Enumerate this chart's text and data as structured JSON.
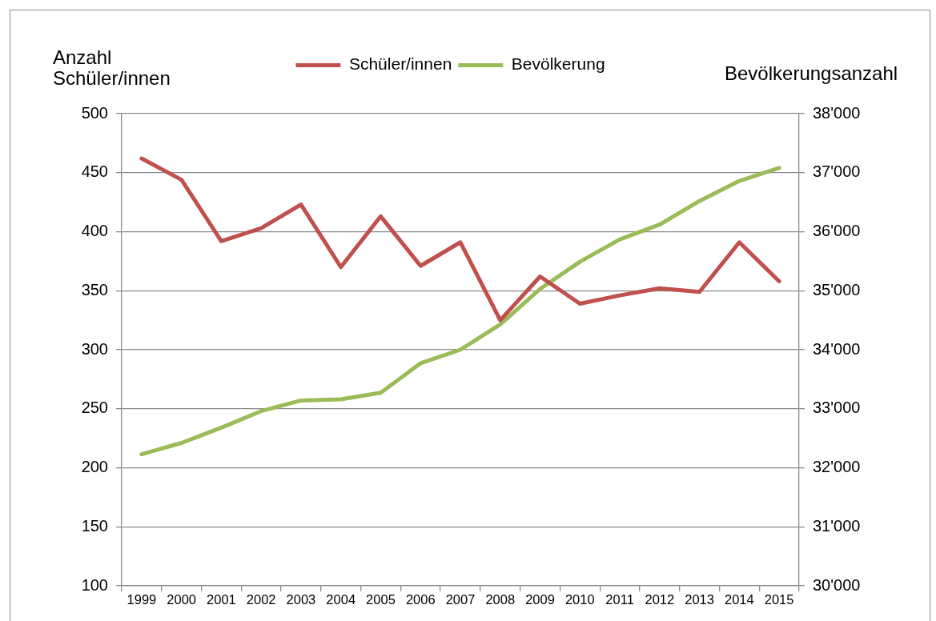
{
  "chart_data": {
    "type": "line",
    "ylabel": "Anzahl Schüler/innen",
    "y2label": "Bevölkerungsanzahl",
    "categories": [
      "1999",
      "2000",
      "2001",
      "2002",
      "2003",
      "2004",
      "2005",
      "2006",
      "2007",
      "2008",
      "2009",
      "2010",
      "2011",
      "2012",
      "2013",
      "2014",
      "2015"
    ],
    "series": [
      {
        "name": "Schüler/innen",
        "color": "#c0504d",
        "values": [
          462,
          444,
          392,
          403,
          423,
          370,
          413,
          371,
          391,
          325,
          362,
          339,
          346,
          352,
          349,
          391,
          358
        ]
      },
      {
        "name": "Bevölkerung",
        "color": "#9bbb59",
        "axis": "y2",
        "values": [
          32230,
          32420,
          32680,
          32960,
          33140,
          33160,
          33270,
          33770,
          34000,
          34430,
          35030,
          35490,
          35870,
          36120,
          36520,
          36860,
          37080
        ]
      }
    ],
    "ylim": [
      100,
      500
    ],
    "yticks": [
      100,
      150,
      200,
      250,
      300,
      350,
      400,
      450,
      500
    ],
    "y2lim": [
      30000,
      38000
    ],
    "y2ticks": [
      {
        "value": 30000,
        "label": "30'000"
      },
      {
        "value": 31000,
        "label": "31'000"
      },
      {
        "value": 32000,
        "label": "32'000"
      },
      {
        "value": 33000,
        "label": "33'000"
      },
      {
        "value": 34000,
        "label": "34'000"
      },
      {
        "value": 35000,
        "label": "35'000"
      },
      {
        "value": 36000,
        "label": "36'000"
      },
      {
        "value": 37000,
        "label": "37'000"
      },
      {
        "value": 38000,
        "label": "38'000"
      }
    ],
    "grid": "y",
    "legend": "top",
    "marker": "none"
  }
}
